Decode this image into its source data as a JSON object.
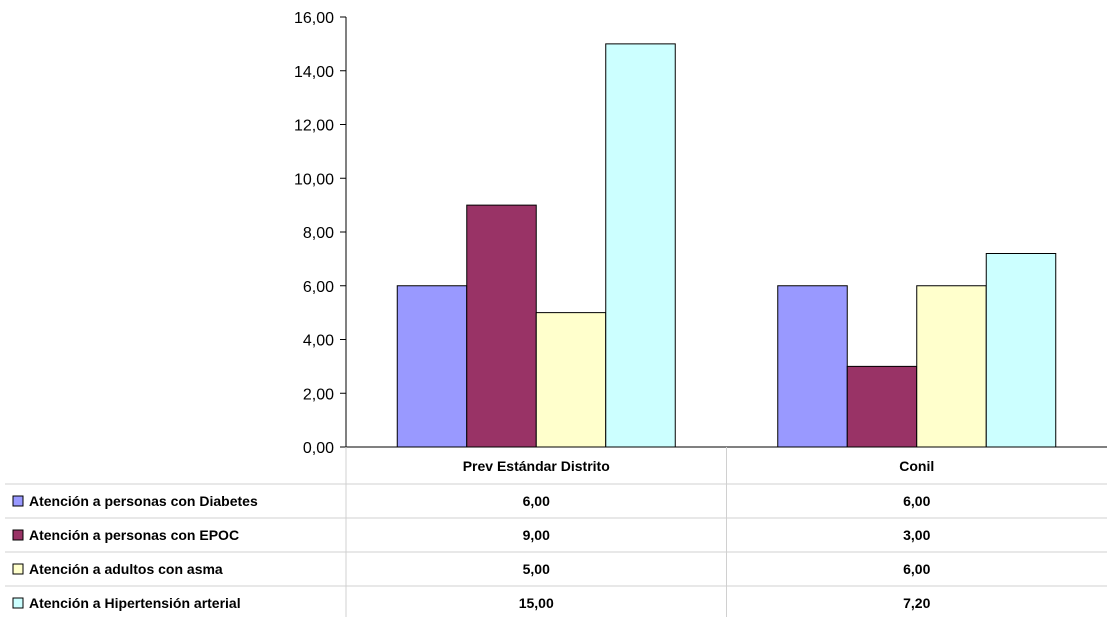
{
  "chart_data": {
    "type": "bar",
    "categories": [
      "Prev Estándar Distrito",
      "Conil"
    ],
    "series": [
      {
        "name": "Atención a personas con Diabetes",
        "values": [
          6.0,
          6.0
        ],
        "labels": [
          "6,00",
          "6,00"
        ],
        "color": "#9999ff"
      },
      {
        "name": "Atención a personas con EPOC",
        "values": [
          9.0,
          3.0
        ],
        "labels": [
          "9,00",
          "3,00"
        ],
        "color": "#993366"
      },
      {
        "name": "Atención a adultos con asma",
        "values": [
          5.0,
          6.0
        ],
        "labels": [
          "5,00",
          "6,00"
        ],
        "color": "#ffffcc"
      },
      {
        "name": "Atención a Hipertensión arterial",
        "values": [
          15.0,
          7.2
        ],
        "labels": [
          "15,00",
          "7,20"
        ],
        "color": "#ccffff"
      }
    ],
    "ylim": [
      0,
      16
    ],
    "yticks": [
      0,
      2,
      4,
      6,
      8,
      10,
      12,
      14,
      16
    ],
    "ytick_labels": [
      "0,00",
      "2,00",
      "4,00",
      "6,00",
      "8,00",
      "10,00",
      "12,00",
      "14,00",
      "16,00"
    ],
    "xlabel": "",
    "ylabel": "",
    "grid": false,
    "legend": "data-table"
  }
}
